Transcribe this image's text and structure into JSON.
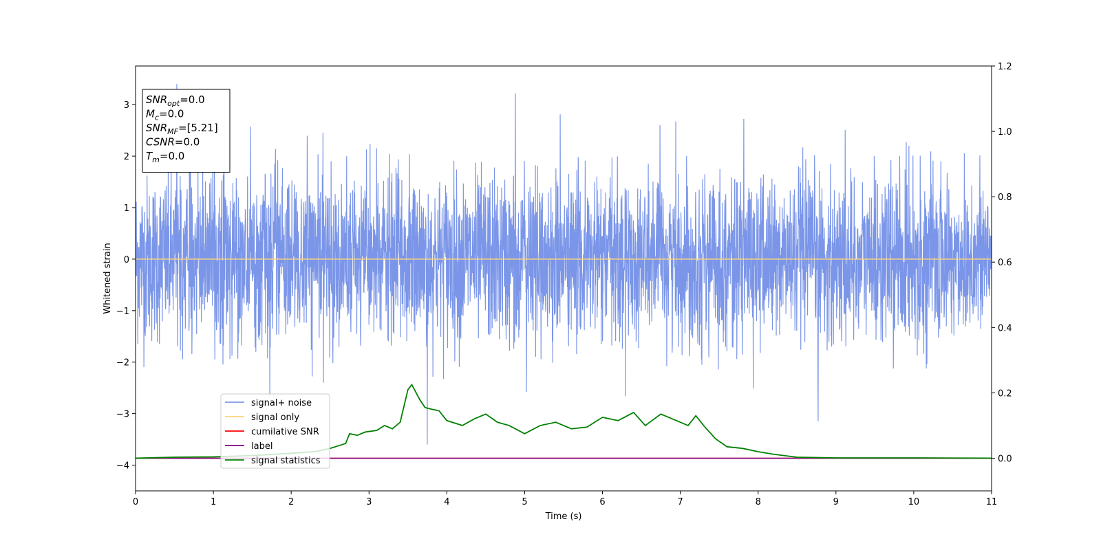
{
  "chart_data": {
    "type": "line",
    "xlabel": "Time (s)",
    "ylabel": "Whitened strain",
    "xlim": [
      0,
      11
    ],
    "ylim": [
      -4.5,
      3.75
    ],
    "y2lim": [
      -0.1,
      1.2
    ],
    "xticks": [
      0,
      1,
      2,
      3,
      4,
      5,
      6,
      7,
      8,
      9,
      10,
      11
    ],
    "yticks": [
      -4,
      -3,
      -2,
      -1,
      0,
      1,
      2,
      3
    ],
    "y2ticks": [
      0.0,
      0.2,
      0.4,
      0.6,
      0.8,
      1.0,
      1.2
    ],
    "grid": false,
    "legend_placement": "lower-left",
    "legend": [
      {
        "label": "signal+ noise",
        "color": "#7b96e8"
      },
      {
        "label": "signal only",
        "color": "#ffd27a"
      },
      {
        "label": "cumilative SNR",
        "color": "#ff0000"
      },
      {
        "label": "label",
        "color": "#800080"
      },
      {
        "label": "signal statistics",
        "color": "#008000"
      }
    ],
    "annotation": [
      {
        "name": "SNR",
        "sub": "opt",
        "value": "=0.0"
      },
      {
        "name": "M",
        "sub": "c",
        "value": "=0.0"
      },
      {
        "name": "SNR",
        "sub": "MF",
        "value": "=[5.21]"
      },
      {
        "name": "CSNR",
        "sub": "",
        "value": "=0.0"
      },
      {
        "name": "T",
        "sub": "m",
        "value": "=0.0"
      }
    ],
    "series": [
      {
        "name": "signal+ noise",
        "axis": "left",
        "color": "#7b96e8",
        "style": "noise",
        "noise_std": 0.8,
        "x_range": [
          0,
          11
        ],
        "notable_peaks": [
          [
            0.53,
            3.4
          ],
          [
            4.88,
            3.22
          ],
          [
            3.75,
            -3.6
          ],
          [
            8.77,
            -3.15
          ]
        ]
      },
      {
        "name": "signal only",
        "axis": "left",
        "color": "#ffd27a",
        "x": [
          0,
          11
        ],
        "y": [
          0,
          0
        ]
      },
      {
        "name": "cumilative SNR",
        "axis": "right",
        "color": "#ff0000",
        "x": [
          0,
          11
        ],
        "y": [
          0,
          0
        ]
      },
      {
        "name": "label",
        "axis": "right",
        "color": "#800080",
        "x": [
          0,
          11
        ],
        "y": [
          0,
          0
        ]
      },
      {
        "name": "signal statistics",
        "axis": "right",
        "color": "#008000",
        "x": [
          0,
          0.5,
          1.0,
          1.5,
          2.0,
          2.3,
          2.5,
          2.7,
          2.75,
          2.85,
          2.95,
          3.1,
          3.2,
          3.3,
          3.4,
          3.5,
          3.55,
          3.65,
          3.72,
          3.8,
          3.9,
          4.0,
          4.2,
          4.35,
          4.5,
          4.65,
          4.8,
          5.0,
          5.2,
          5.4,
          5.6,
          5.8,
          6.0,
          6.2,
          6.4,
          6.55,
          6.75,
          6.9,
          7.1,
          7.2,
          7.3,
          7.45,
          7.6,
          7.8,
          8.0,
          8.2,
          8.5,
          9.0,
          10.0,
          11.0
        ],
        "y": [
          0.0,
          0.003,
          0.004,
          0.008,
          0.015,
          0.02,
          0.03,
          0.045,
          0.075,
          0.07,
          0.08,
          0.085,
          0.1,
          0.09,
          0.11,
          0.21,
          0.225,
          0.18,
          0.155,
          0.15,
          0.145,
          0.115,
          0.1,
          0.12,
          0.135,
          0.11,
          0.1,
          0.075,
          0.1,
          0.11,
          0.09,
          0.095,
          0.125,
          0.115,
          0.14,
          0.1,
          0.135,
          0.12,
          0.1,
          0.13,
          0.1,
          0.06,
          0.035,
          0.03,
          0.02,
          0.012,
          0.003,
          0.001,
          0.001,
          0.0
        ]
      }
    ]
  }
}
